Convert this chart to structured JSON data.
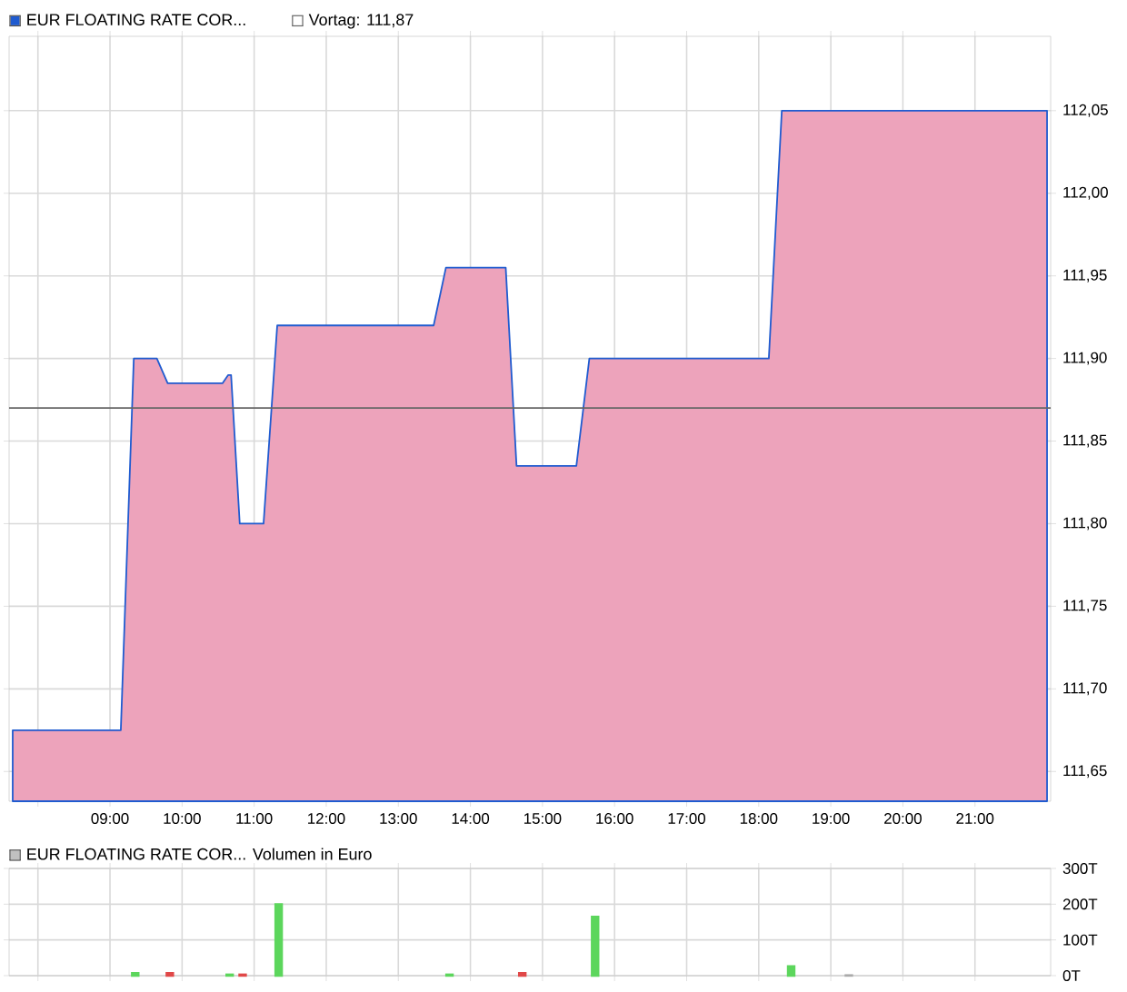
{
  "chart_data": [
    {
      "type": "area",
      "x": [
        7.65,
        9.15,
        9.33,
        9.65,
        9.8,
        10.56,
        10.64,
        10.68,
        10.8,
        11.13,
        11.32,
        13.49,
        13.66,
        14.49,
        14.64,
        15.47,
        15.65,
        18.14,
        18.32,
        22.0
      ],
      "series": [
        {
          "name": "EUR FLOATING RATE COR...",
          "color": "#1f5bd0",
          "values": [
            111.675,
            111.675,
            111.9,
            111.9,
            111.885,
            111.885,
            111.89,
            111.89,
            111.8,
            111.8,
            111.92,
            111.92,
            111.955,
            111.955,
            111.835,
            111.835,
            111.9,
            111.9,
            112.05,
            112.05
          ]
        }
      ],
      "xlim": [
        7.6,
        22.05
      ],
      "ylim": [
        111.632,
        112.095
      ],
      "xticks": [
        {
          "value": 8,
          "label": null
        },
        {
          "value": 9,
          "label": "09:00"
        },
        {
          "value": 10,
          "label": "10:00"
        },
        {
          "value": 11,
          "label": "11:00"
        },
        {
          "value": 12,
          "label": "12:00"
        },
        {
          "value": 13,
          "label": "13:00"
        },
        {
          "value": 14,
          "label": "14:00"
        },
        {
          "value": 15,
          "label": "15:00"
        },
        {
          "value": 16,
          "label": "16:00"
        },
        {
          "value": 17,
          "label": "17:00"
        },
        {
          "value": 18,
          "label": "18:00"
        },
        {
          "value": 19,
          "label": "19:00"
        },
        {
          "value": 20,
          "label": "20:00"
        },
        {
          "value": 21,
          "label": "21:00"
        }
      ],
      "yticks": [
        {
          "value": 111.65,
          "label": "111,65"
        },
        {
          "value": 111.7,
          "label": "111,70"
        },
        {
          "value": 111.75,
          "label": "111,75"
        },
        {
          "value": 111.8,
          "label": "111,80"
        },
        {
          "value": 111.85,
          "label": "111,85"
        },
        {
          "value": 111.9,
          "label": "111,90"
        },
        {
          "value": 111.95,
          "label": "111,95"
        },
        {
          "value": 112.0,
          "label": "112,00"
        },
        {
          "value": 112.05,
          "label": "112,05"
        }
      ],
      "ref_lines": [
        {
          "axis": "y",
          "value": 111.87,
          "label": "Vortag: 111,87",
          "color": "#666666"
        }
      ],
      "grid": true,
      "legend": "top left"
    },
    {
      "type": "bar",
      "x": [
        9.35,
        9.83,
        10.66,
        10.84,
        11.34,
        13.71,
        14.72,
        15.73,
        18.45,
        19.25
      ],
      "series": [
        {
          "name": "EUR FLOATING RATE COR... Volumen in Euro",
          "color": "#c0c0c0",
          "colors": [
            "#5cd65c",
            "#e04848",
            "#5cd65c",
            "#e04848",
            "#5cd65c",
            "#5cd65c",
            "#e04848",
            "#5cd65c",
            "#5cd65c",
            "#aaaaaa"
          ],
          "values": [
            7,
            7,
            3,
            3,
            200,
            3,
            7,
            165,
            26,
            1
          ]
        }
      ],
      "xlim": [
        7.6,
        22.05
      ],
      "ylim": [
        0,
        300
      ],
      "xticks": [
        {
          "value": 8,
          "label": null
        },
        {
          "value": 9,
          "label": null
        },
        {
          "value": 10,
          "label": null
        },
        {
          "value": 11,
          "label": null
        },
        {
          "value": 12,
          "label": null
        },
        {
          "value": 13,
          "label": null
        },
        {
          "value": 14,
          "label": null
        },
        {
          "value": 15,
          "label": null
        },
        {
          "value": 16,
          "label": null
        },
        {
          "value": 17,
          "label": null
        },
        {
          "value": 18,
          "label": null
        },
        {
          "value": 19,
          "label": null
        },
        {
          "value": 20,
          "label": null
        },
        {
          "value": 21,
          "label": null
        }
      ],
      "yticks": [
        {
          "value": 0,
          "label": "0T"
        },
        {
          "value": 100,
          "label": "100T"
        },
        {
          "value": 200,
          "label": "200T"
        },
        {
          "value": 300,
          "label": "300T"
        }
      ],
      "tick_labels": "y",
      "grid": true,
      "legend": "top left"
    }
  ]
}
